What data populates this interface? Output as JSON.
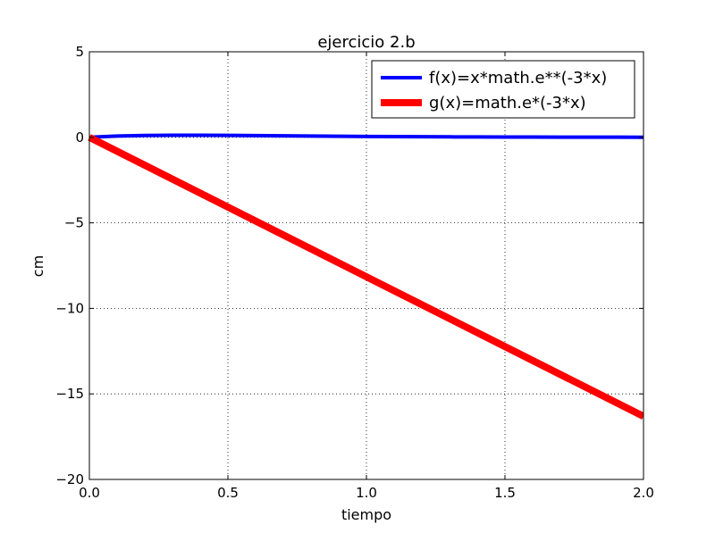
{
  "chart_data": {
    "type": "line",
    "title": "ejercicio 2.b",
    "xlabel": "tiempo",
    "ylabel": "cm",
    "xlim": [
      0.0,
      2.0
    ],
    "ylim": [
      -20,
      5
    ],
    "x_ticks": [
      0.0,
      0.5,
      1.0,
      1.5,
      2.0
    ],
    "x_tick_labels": [
      "0.0",
      "0.5",
      "1.0",
      "1.5",
      "2.0"
    ],
    "y_ticks": [
      5,
      0,
      -5,
      -10,
      -15,
      -20
    ],
    "y_tick_labels": [
      "5",
      "0",
      "−5",
      "−10",
      "−15",
      "−20"
    ],
    "grid": true,
    "legend_position": "top-right",
    "series": [
      {
        "name": "f(x)=x*math.e**(-3*x)",
        "color": "#0000ff",
        "x": [
          0.0,
          0.1,
          0.2,
          0.3,
          0.4,
          0.5,
          0.6,
          0.7,
          0.8,
          0.9,
          1.0,
          1.1,
          1.2,
          1.3,
          1.4,
          1.5,
          1.6,
          1.7,
          1.8,
          1.9,
          2.0
        ],
        "y": [
          0.0,
          0.074,
          0.11,
          0.122,
          0.12,
          0.112,
          0.099,
          0.086,
          0.073,
          0.06,
          0.05,
          0.041,
          0.033,
          0.026,
          0.021,
          0.017,
          0.013,
          0.01,
          0.008,
          0.006,
          0.005
        ]
      },
      {
        "name": "g(x)=math.e*(-3*x)",
        "color": "#ff0000",
        "x": [
          0.0,
          2.0
        ],
        "y": [
          0.0,
          -16.31
        ]
      }
    ]
  }
}
